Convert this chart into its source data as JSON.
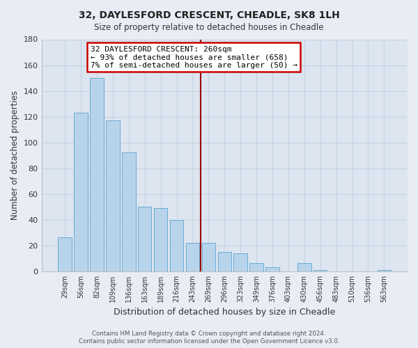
{
  "title": "32, DAYLESFORD CRESCENT, CHEADLE, SK8 1LH",
  "subtitle": "Size of property relative to detached houses in Cheadle",
  "xlabel": "Distribution of detached houses by size in Cheadle",
  "ylabel": "Number of detached properties",
  "bar_labels": [
    "29sqm",
    "56sqm",
    "82sqm",
    "109sqm",
    "136sqm",
    "163sqm",
    "189sqm",
    "216sqm",
    "243sqm",
    "269sqm",
    "296sqm",
    "323sqm",
    "349sqm",
    "376sqm",
    "403sqm",
    "430sqm",
    "456sqm",
    "483sqm",
    "510sqm",
    "536sqm",
    "563sqm"
  ],
  "bar_values": [
    26,
    123,
    150,
    117,
    92,
    50,
    49,
    40,
    22,
    22,
    15,
    14,
    6,
    3,
    0,
    6,
    1,
    0,
    0,
    0,
    1
  ],
  "bar_color": "#b8d4eb",
  "bar_edge_color": "#6aaad4",
  "ylim": [
    0,
    180
  ],
  "yticks": [
    0,
    20,
    40,
    60,
    80,
    100,
    120,
    140,
    160,
    180
  ],
  "vline_x": 8.5,
  "vline_color": "#990000",
  "annotation_title": "32 DAYLESFORD CRESCENT: 260sqm",
  "annotation_line1": "← 93% of detached houses are smaller (658)",
  "annotation_line2": "7% of semi-detached houses are larger (50) →",
  "annotation_box_color": "#ffffff",
  "annotation_box_edge": "#cc0000",
  "footer_line1": "Contains HM Land Registry data © Crown copyright and database right 2024.",
  "footer_line2": "Contains public sector information licensed under the Open Government Licence v3.0.",
  "background_color": "#e8edf5",
  "plot_bg_color": "#dce5f0",
  "grid_color": "#c8d4e4"
}
